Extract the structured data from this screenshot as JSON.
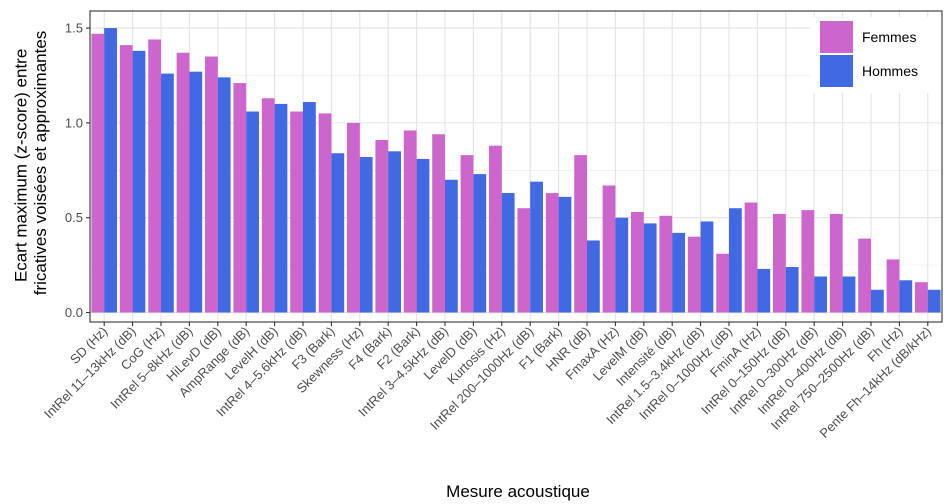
{
  "chart_data": {
    "type": "bar",
    "xlabel": "Mesure acoustique",
    "ylabel_lines": [
      "Ecart maximum (z-score) entre",
      "fricatives voisées et approximantes"
    ],
    "ylim": [
      -0.05,
      1.59
    ],
    "yticks": [
      0.0,
      0.5,
      1.0,
      1.5
    ],
    "ytick_labels": [
      "0.0",
      "0.5",
      "1.0",
      "1.5"
    ],
    "grid": true,
    "legend_position": "top-right",
    "categories": [
      "SD (Hz)",
      "IntRel 11–13kHz (dB)",
      "CoG (Hz)",
      "IntRel 5–8kHz (dB)",
      "HiLevD (dB)",
      "AmpRange (dB)",
      "LevelH (dB)",
      "IntRel 4–5.6kHz (dB)",
      "F3 (Bark)",
      "Skewness (Hz)",
      "F4 (Bark)",
      "F2 (Bark)",
      "IntRel 3–4.5kHz (dB)",
      "LevelD (dB)",
      "Kurtosis (Hz)",
      "IntRel 200–1000Hz (dB)",
      "F1 (Bark)",
      "HNR (dB)",
      "FmaxA (Hz)",
      "LevelM (dB)",
      "Intensité (dB)",
      "IntRel 1.5–3.4kHz (dB)",
      "IntRel 0–1000Hz (dB)",
      "FminA (Hz)",
      "IntRel 0–150Hz (dB)",
      "IntRel 0–300Hz (dB)",
      "IntRel 0–400Hz (dB)",
      "IntRel 750–2500Hz (dB)",
      "Fh (Hz)",
      "Pente Fh–14kHz (dB/kHz)"
    ],
    "series": [
      {
        "name": "Femmes",
        "color": "#cc66cc",
        "values": [
          1.47,
          1.41,
          1.44,
          1.37,
          1.35,
          1.21,
          1.13,
          1.06,
          1.05,
          1.0,
          0.91,
          0.96,
          0.94,
          0.83,
          0.88,
          0.55,
          0.63,
          0.83,
          0.67,
          0.53,
          0.51,
          0.4,
          0.31,
          0.58,
          0.52,
          0.54,
          0.52,
          0.39,
          0.28,
          0.16
        ]
      },
      {
        "name": "Hommes",
        "color": "#4169e1",
        "values": [
          1.5,
          1.38,
          1.26,
          1.27,
          1.24,
          1.06,
          1.1,
          1.11,
          0.84,
          0.82,
          0.85,
          0.81,
          0.7,
          0.73,
          0.63,
          0.69,
          0.61,
          0.38,
          0.5,
          0.47,
          0.42,
          0.48,
          0.55,
          0.23,
          0.24,
          0.19,
          0.19,
          0.12,
          0.17,
          0.12
        ]
      }
    ]
  }
}
